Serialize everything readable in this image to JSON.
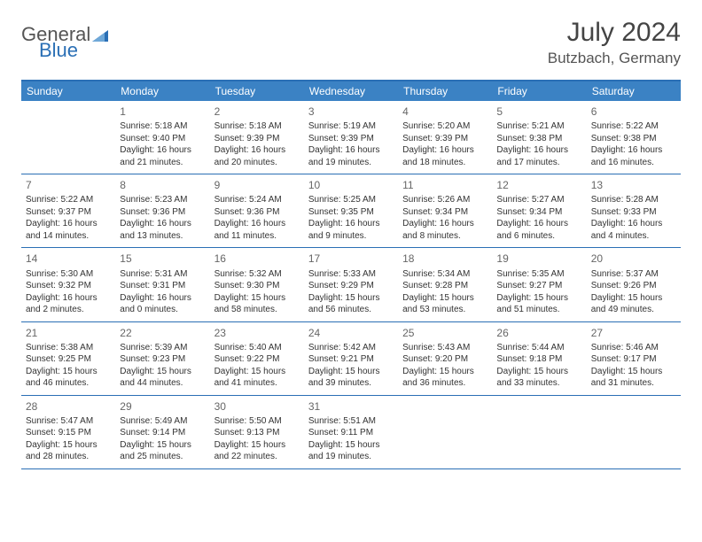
{
  "logo": {
    "part1": "General",
    "part2": "Blue"
  },
  "title": "July 2024",
  "location": "Butzbach, Germany",
  "colors": {
    "header_bg": "#3b82c4",
    "border": "#2a6fb5",
    "text": "#333333",
    "logo_gray": "#555555",
    "logo_blue": "#2a6fb5"
  },
  "day_labels": [
    "Sunday",
    "Monday",
    "Tuesday",
    "Wednesday",
    "Thursday",
    "Friday",
    "Saturday"
  ],
  "weeks": [
    [
      {
        "day": "",
        "sunrise": "",
        "sunset": "",
        "daylight1": "",
        "daylight2": ""
      },
      {
        "day": "1",
        "sunrise": "Sunrise: 5:18 AM",
        "sunset": "Sunset: 9:40 PM",
        "daylight1": "Daylight: 16 hours",
        "daylight2": "and 21 minutes."
      },
      {
        "day": "2",
        "sunrise": "Sunrise: 5:18 AM",
        "sunset": "Sunset: 9:39 PM",
        "daylight1": "Daylight: 16 hours",
        "daylight2": "and 20 minutes."
      },
      {
        "day": "3",
        "sunrise": "Sunrise: 5:19 AM",
        "sunset": "Sunset: 9:39 PM",
        "daylight1": "Daylight: 16 hours",
        "daylight2": "and 19 minutes."
      },
      {
        "day": "4",
        "sunrise": "Sunrise: 5:20 AM",
        "sunset": "Sunset: 9:39 PM",
        "daylight1": "Daylight: 16 hours",
        "daylight2": "and 18 minutes."
      },
      {
        "day": "5",
        "sunrise": "Sunrise: 5:21 AM",
        "sunset": "Sunset: 9:38 PM",
        "daylight1": "Daylight: 16 hours",
        "daylight2": "and 17 minutes."
      },
      {
        "day": "6",
        "sunrise": "Sunrise: 5:22 AM",
        "sunset": "Sunset: 9:38 PM",
        "daylight1": "Daylight: 16 hours",
        "daylight2": "and 16 minutes."
      }
    ],
    [
      {
        "day": "7",
        "sunrise": "Sunrise: 5:22 AM",
        "sunset": "Sunset: 9:37 PM",
        "daylight1": "Daylight: 16 hours",
        "daylight2": "and 14 minutes."
      },
      {
        "day": "8",
        "sunrise": "Sunrise: 5:23 AM",
        "sunset": "Sunset: 9:36 PM",
        "daylight1": "Daylight: 16 hours",
        "daylight2": "and 13 minutes."
      },
      {
        "day": "9",
        "sunrise": "Sunrise: 5:24 AM",
        "sunset": "Sunset: 9:36 PM",
        "daylight1": "Daylight: 16 hours",
        "daylight2": "and 11 minutes."
      },
      {
        "day": "10",
        "sunrise": "Sunrise: 5:25 AM",
        "sunset": "Sunset: 9:35 PM",
        "daylight1": "Daylight: 16 hours",
        "daylight2": "and 9 minutes."
      },
      {
        "day": "11",
        "sunrise": "Sunrise: 5:26 AM",
        "sunset": "Sunset: 9:34 PM",
        "daylight1": "Daylight: 16 hours",
        "daylight2": "and 8 minutes."
      },
      {
        "day": "12",
        "sunrise": "Sunrise: 5:27 AM",
        "sunset": "Sunset: 9:34 PM",
        "daylight1": "Daylight: 16 hours",
        "daylight2": "and 6 minutes."
      },
      {
        "day": "13",
        "sunrise": "Sunrise: 5:28 AM",
        "sunset": "Sunset: 9:33 PM",
        "daylight1": "Daylight: 16 hours",
        "daylight2": "and 4 minutes."
      }
    ],
    [
      {
        "day": "14",
        "sunrise": "Sunrise: 5:30 AM",
        "sunset": "Sunset: 9:32 PM",
        "daylight1": "Daylight: 16 hours",
        "daylight2": "and 2 minutes."
      },
      {
        "day": "15",
        "sunrise": "Sunrise: 5:31 AM",
        "sunset": "Sunset: 9:31 PM",
        "daylight1": "Daylight: 16 hours",
        "daylight2": "and 0 minutes."
      },
      {
        "day": "16",
        "sunrise": "Sunrise: 5:32 AM",
        "sunset": "Sunset: 9:30 PM",
        "daylight1": "Daylight: 15 hours",
        "daylight2": "and 58 minutes."
      },
      {
        "day": "17",
        "sunrise": "Sunrise: 5:33 AM",
        "sunset": "Sunset: 9:29 PM",
        "daylight1": "Daylight: 15 hours",
        "daylight2": "and 56 minutes."
      },
      {
        "day": "18",
        "sunrise": "Sunrise: 5:34 AM",
        "sunset": "Sunset: 9:28 PM",
        "daylight1": "Daylight: 15 hours",
        "daylight2": "and 53 minutes."
      },
      {
        "day": "19",
        "sunrise": "Sunrise: 5:35 AM",
        "sunset": "Sunset: 9:27 PM",
        "daylight1": "Daylight: 15 hours",
        "daylight2": "and 51 minutes."
      },
      {
        "day": "20",
        "sunrise": "Sunrise: 5:37 AM",
        "sunset": "Sunset: 9:26 PM",
        "daylight1": "Daylight: 15 hours",
        "daylight2": "and 49 minutes."
      }
    ],
    [
      {
        "day": "21",
        "sunrise": "Sunrise: 5:38 AM",
        "sunset": "Sunset: 9:25 PM",
        "daylight1": "Daylight: 15 hours",
        "daylight2": "and 46 minutes."
      },
      {
        "day": "22",
        "sunrise": "Sunrise: 5:39 AM",
        "sunset": "Sunset: 9:23 PM",
        "daylight1": "Daylight: 15 hours",
        "daylight2": "and 44 minutes."
      },
      {
        "day": "23",
        "sunrise": "Sunrise: 5:40 AM",
        "sunset": "Sunset: 9:22 PM",
        "daylight1": "Daylight: 15 hours",
        "daylight2": "and 41 minutes."
      },
      {
        "day": "24",
        "sunrise": "Sunrise: 5:42 AM",
        "sunset": "Sunset: 9:21 PM",
        "daylight1": "Daylight: 15 hours",
        "daylight2": "and 39 minutes."
      },
      {
        "day": "25",
        "sunrise": "Sunrise: 5:43 AM",
        "sunset": "Sunset: 9:20 PM",
        "daylight1": "Daylight: 15 hours",
        "daylight2": "and 36 minutes."
      },
      {
        "day": "26",
        "sunrise": "Sunrise: 5:44 AM",
        "sunset": "Sunset: 9:18 PM",
        "daylight1": "Daylight: 15 hours",
        "daylight2": "and 33 minutes."
      },
      {
        "day": "27",
        "sunrise": "Sunrise: 5:46 AM",
        "sunset": "Sunset: 9:17 PM",
        "daylight1": "Daylight: 15 hours",
        "daylight2": "and 31 minutes."
      }
    ],
    [
      {
        "day": "28",
        "sunrise": "Sunrise: 5:47 AM",
        "sunset": "Sunset: 9:15 PM",
        "daylight1": "Daylight: 15 hours",
        "daylight2": "and 28 minutes."
      },
      {
        "day": "29",
        "sunrise": "Sunrise: 5:49 AM",
        "sunset": "Sunset: 9:14 PM",
        "daylight1": "Daylight: 15 hours",
        "daylight2": "and 25 minutes."
      },
      {
        "day": "30",
        "sunrise": "Sunrise: 5:50 AM",
        "sunset": "Sunset: 9:13 PM",
        "daylight1": "Daylight: 15 hours",
        "daylight2": "and 22 minutes."
      },
      {
        "day": "31",
        "sunrise": "Sunrise: 5:51 AM",
        "sunset": "Sunset: 9:11 PM",
        "daylight1": "Daylight: 15 hours",
        "daylight2": "and 19 minutes."
      },
      {
        "day": "",
        "sunrise": "",
        "sunset": "",
        "daylight1": "",
        "daylight2": ""
      },
      {
        "day": "",
        "sunrise": "",
        "sunset": "",
        "daylight1": "",
        "daylight2": ""
      },
      {
        "day": "",
        "sunrise": "",
        "sunset": "",
        "daylight1": "",
        "daylight2": ""
      }
    ]
  ]
}
